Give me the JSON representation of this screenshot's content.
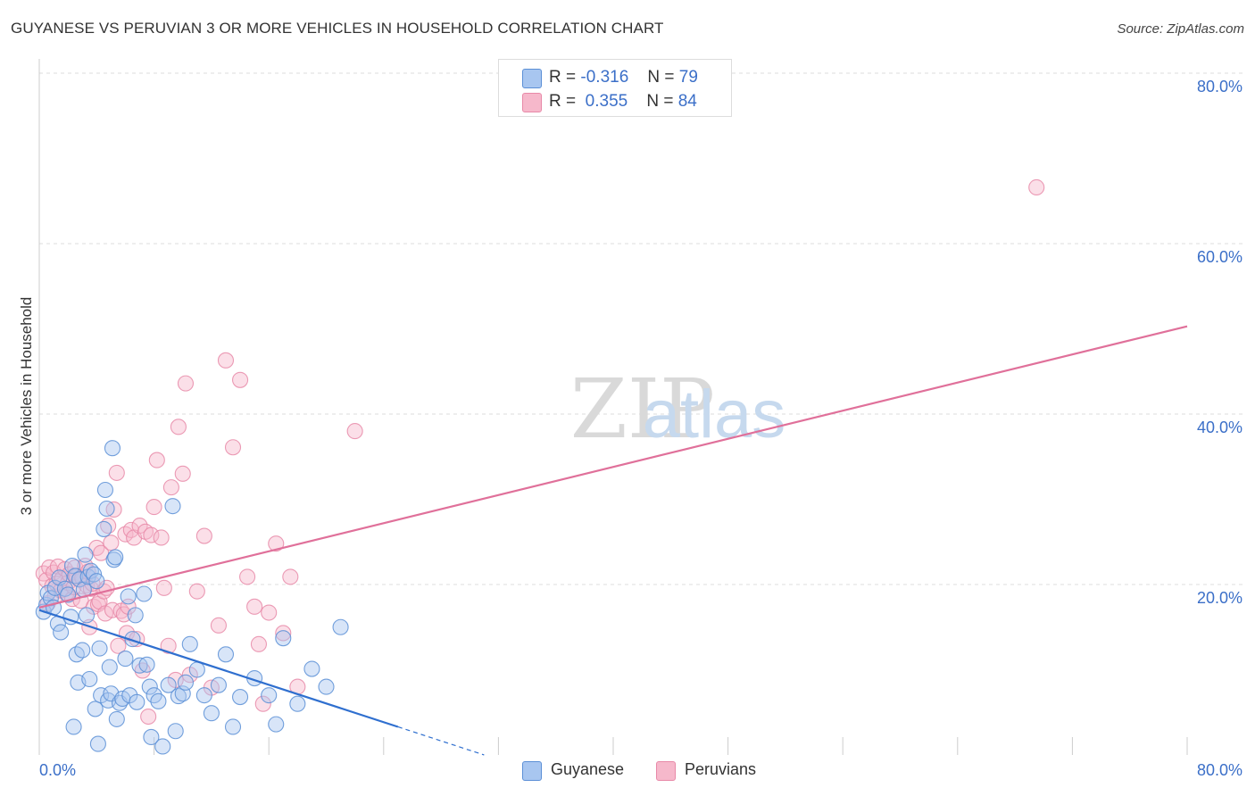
{
  "title": "GUYANESE VS PERUVIAN 3 OR MORE VEHICLES IN HOUSEHOLD CORRELATION CHART",
  "source": "Source: ZipAtlas.com",
  "watermark": {
    "zip": "ZIP",
    "atlas": "atlas"
  },
  "legend_top": {
    "guyanese": {
      "r_label": "R =",
      "r_value": "-0.316",
      "n_label": "N =",
      "n_value": "79"
    },
    "peruvians": {
      "r_label": "R =",
      "r_value": "0.355",
      "n_label": "N =",
      "n_value": "84"
    }
  },
  "colors": {
    "guyanese_fill": "#a8c6f0",
    "guyanese_stroke": "#5b8fd6",
    "guyanese_line": "#2f6fcf",
    "peruvians_fill": "#f6b8cb",
    "peruvians_stroke": "#e889a8",
    "peruvians_line": "#e0709a",
    "axis_text": "#3b6fc8"
  },
  "chart_data": {
    "type": "scatter",
    "title": "GUYANESE VS PERUVIAN 3 OR MORE VEHICLES IN HOUSEHOLD CORRELATION CHART",
    "xlabel": "",
    "ylabel": "3 or more Vehicles in Household",
    "xlim": [
      0,
      80
    ],
    "ylim": [
      0,
      80
    ],
    "x_tick_labels": [
      "0.0%",
      "80.0%"
    ],
    "y_tick_labels": [
      "20.0%",
      "40.0%",
      "60.0%",
      "80.0%"
    ],
    "y_ticks": [
      20,
      40,
      60,
      80
    ],
    "grid": true,
    "legend": [
      "Guyanese",
      "Peruvians"
    ],
    "series": [
      {
        "name": "Guyanese",
        "r": -0.316,
        "n": 79,
        "trend": {
          "x0": 0,
          "y0": 17.0,
          "x1": 25,
          "y1": 3.3,
          "dashed_to_x": 31,
          "dashed_to_y": 0
        },
        "points": [
          [
            0.3,
            16.8
          ],
          [
            0.5,
            17.6
          ],
          [
            0.6,
            19.0
          ],
          [
            0.8,
            18.4
          ],
          [
            1.0,
            17.3
          ],
          [
            1.1,
            19.6
          ],
          [
            1.3,
            15.4
          ],
          [
            1.4,
            20.8
          ],
          [
            1.5,
            14.4
          ],
          [
            1.8,
            19.5
          ],
          [
            2.0,
            18.8
          ],
          [
            2.2,
            16.2
          ],
          [
            2.3,
            22.2
          ],
          [
            2.4,
            3.3
          ],
          [
            2.5,
            21.0
          ],
          [
            2.6,
            11.8
          ],
          [
            2.7,
            8.5
          ],
          [
            2.8,
            20.6
          ],
          [
            3.0,
            12.3
          ],
          [
            3.1,
            19.4
          ],
          [
            3.2,
            23.5
          ],
          [
            3.3,
            16.4
          ],
          [
            3.4,
            20.9
          ],
          [
            3.5,
            8.9
          ],
          [
            3.6,
            21.6
          ],
          [
            3.8,
            21.2
          ],
          [
            3.9,
            5.4
          ],
          [
            4.0,
            20.4
          ],
          [
            4.1,
            1.3
          ],
          [
            4.2,
            12.5
          ],
          [
            4.3,
            7.0
          ],
          [
            4.5,
            26.5
          ],
          [
            4.6,
            31.1
          ],
          [
            4.7,
            28.9
          ],
          [
            4.8,
            6.4
          ],
          [
            4.9,
            10.3
          ],
          [
            5.0,
            7.2
          ],
          [
            5.1,
            36.0
          ],
          [
            5.2,
            22.9
          ],
          [
            5.3,
            23.2
          ],
          [
            5.4,
            4.2
          ],
          [
            5.6,
            6.1
          ],
          [
            5.8,
            6.6
          ],
          [
            6.0,
            11.3
          ],
          [
            6.2,
            18.6
          ],
          [
            6.3,
            7.0
          ],
          [
            6.5,
            13.6
          ],
          [
            6.7,
            16.4
          ],
          [
            6.8,
            6.2
          ],
          [
            7.0,
            10.5
          ],
          [
            7.3,
            18.9
          ],
          [
            7.5,
            10.6
          ],
          [
            7.7,
            8.0
          ],
          [
            7.8,
            2.1
          ],
          [
            8.0,
            7.0
          ],
          [
            8.3,
            6.3
          ],
          [
            8.6,
            1.0
          ],
          [
            9.0,
            8.2
          ],
          [
            9.3,
            29.2
          ],
          [
            9.5,
            2.8
          ],
          [
            9.7,
            6.9
          ],
          [
            10.0,
            7.2
          ],
          [
            10.2,
            8.5
          ],
          [
            10.5,
            13.0
          ],
          [
            11.0,
            10.0
          ],
          [
            11.5,
            7.0
          ],
          [
            12.0,
            4.9
          ],
          [
            12.5,
            8.2
          ],
          [
            13.0,
            11.8
          ],
          [
            13.5,
            3.3
          ],
          [
            14.0,
            6.8
          ],
          [
            15.0,
            9.0
          ],
          [
            16.0,
            7.0
          ],
          [
            16.5,
            3.6
          ],
          [
            17.0,
            13.7
          ],
          [
            18.0,
            6.0
          ],
          [
            19.0,
            10.1
          ],
          [
            20.0,
            8.0
          ],
          [
            21.0,
            15.0
          ]
        ]
      },
      {
        "name": "Peruvians",
        "r": 0.355,
        "n": 84,
        "trend": {
          "x0": 0,
          "y0": 17.3,
          "x1": 80,
          "y1": 50.3
        },
        "points": [
          [
            0.3,
            21.3
          ],
          [
            0.5,
            20.5
          ],
          [
            0.6,
            17.8
          ],
          [
            0.7,
            22.0
          ],
          [
            0.9,
            19.8
          ],
          [
            1.0,
            21.4
          ],
          [
            1.1,
            18.6
          ],
          [
            1.2,
            20.1
          ],
          [
            1.3,
            22.1
          ],
          [
            1.5,
            19.3
          ],
          [
            1.6,
            20.7
          ],
          [
            1.8,
            21.8
          ],
          [
            1.9,
            19.0
          ],
          [
            2.0,
            20.2
          ],
          [
            2.1,
            21.2
          ],
          [
            2.3,
            18.3
          ],
          [
            2.4,
            19.7
          ],
          [
            2.5,
            22.0
          ],
          [
            2.6,
            21.0
          ],
          [
            2.8,
            20.6
          ],
          [
            2.9,
            18.1
          ],
          [
            3.0,
            20.8
          ],
          [
            3.2,
            22.2
          ],
          [
            3.3,
            19.9
          ],
          [
            3.4,
            21.5
          ],
          [
            3.5,
            15.0
          ],
          [
            3.6,
            19.5
          ],
          [
            3.7,
            20.1
          ],
          [
            3.8,
            17.4
          ],
          [
            4.0,
            24.3
          ],
          [
            4.1,
            17.7
          ],
          [
            4.2,
            18.0
          ],
          [
            4.3,
            23.7
          ],
          [
            4.5,
            19.2
          ],
          [
            4.6,
            16.6
          ],
          [
            4.7,
            19.6
          ],
          [
            4.8,
            26.9
          ],
          [
            5.0,
            24.9
          ],
          [
            5.1,
            17.0
          ],
          [
            5.2,
            28.8
          ],
          [
            5.4,
            33.1
          ],
          [
            5.5,
            12.8
          ],
          [
            5.7,
            16.9
          ],
          [
            5.9,
            16.5
          ],
          [
            6.0,
            25.9
          ],
          [
            6.1,
            14.3
          ],
          [
            6.2,
            17.4
          ],
          [
            6.4,
            26.4
          ],
          [
            6.6,
            25.5
          ],
          [
            6.8,
            13.6
          ],
          [
            7.0,
            26.9
          ],
          [
            7.2,
            9.9
          ],
          [
            7.4,
            26.2
          ],
          [
            7.6,
            4.5
          ],
          [
            7.8,
            25.8
          ],
          [
            8.0,
            29.1
          ],
          [
            8.2,
            34.6
          ],
          [
            8.5,
            25.5
          ],
          [
            8.7,
            19.6
          ],
          [
            9.0,
            12.8
          ],
          [
            9.2,
            31.4
          ],
          [
            9.5,
            8.8
          ],
          [
            9.7,
            38.5
          ],
          [
            10.0,
            33.0
          ],
          [
            10.2,
            43.6
          ],
          [
            10.5,
            9.4
          ],
          [
            11.0,
            19.2
          ],
          [
            11.5,
            25.7
          ],
          [
            12.0,
            7.9
          ],
          [
            12.5,
            15.2
          ],
          [
            13.0,
            46.3
          ],
          [
            13.5,
            36.1
          ],
          [
            14.0,
            44.0
          ],
          [
            14.5,
            20.9
          ],
          [
            15.0,
            17.4
          ],
          [
            15.3,
            13.0
          ],
          [
            15.6,
            6.0
          ],
          [
            16.0,
            16.7
          ],
          [
            16.5,
            24.8
          ],
          [
            17.0,
            14.3
          ],
          [
            17.5,
            20.9
          ],
          [
            18.0,
            8.0
          ],
          [
            22.0,
            38.0
          ],
          [
            69.5,
            66.6
          ]
        ]
      }
    ]
  },
  "legend_bottom": {
    "guyanese_label": "Guyanese",
    "peruvians_label": "Peruvians"
  }
}
